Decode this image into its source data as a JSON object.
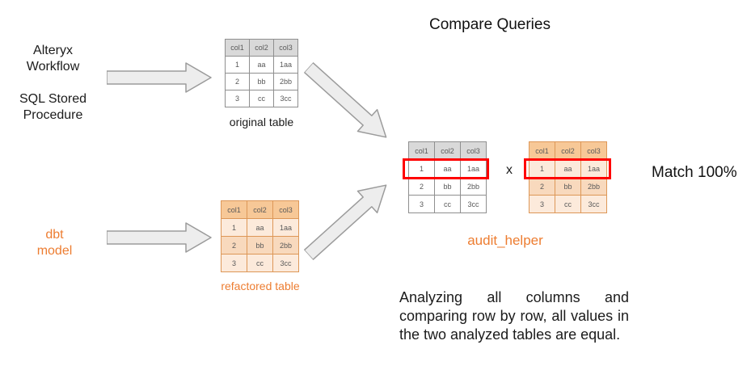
{
  "title": "Compare Queries",
  "colors": {
    "accent_orange": "#ED7D31",
    "highlight_red": "#FF0000",
    "table_gray_header": "#D9D9D9",
    "table_orange_header": "#F7C897",
    "table_orange_row": "#FCEADB",
    "arrow_fill": "#EDEDED"
  },
  "sources": {
    "alteryx": {
      "line1": "Alteryx",
      "line2": "Workflow"
    },
    "sql": {
      "line1": "SQL Stored",
      "line2": "Procedure"
    },
    "dbt": {
      "line1": "dbt",
      "line2": "model"
    }
  },
  "tables": {
    "original": {
      "caption": "original table",
      "headers": [
        "col1",
        "col2",
        "col3"
      ],
      "rows": [
        [
          "1",
          "aa",
          "1aa"
        ],
        [
          "2",
          "bb",
          "2bb"
        ],
        [
          "3",
          "cc",
          "3cc"
        ]
      ]
    },
    "refactored": {
      "caption": "refactored table",
      "headers": [
        "col1",
        "col2",
        "col3"
      ],
      "rows": [
        [
          "1",
          "aa",
          "1aa"
        ],
        [
          "2",
          "bb",
          "2bb"
        ],
        [
          "3",
          "cc",
          "3cc"
        ]
      ]
    },
    "compare_left": {
      "headers": [
        "col1",
        "col2",
        "col3"
      ],
      "rows": [
        [
          "1",
          "aa",
          "1aa"
        ],
        [
          "2",
          "bb",
          "2bb"
        ],
        [
          "3",
          "cc",
          "3cc"
        ]
      ]
    },
    "compare_right": {
      "headers": [
        "col1",
        "col2",
        "col3"
      ],
      "rows": [
        [
          "1",
          "aa",
          "1aa"
        ],
        [
          "2",
          "bb",
          "2bb"
        ],
        [
          "3",
          "cc",
          "3cc"
        ]
      ]
    }
  },
  "compare": {
    "operator": "x",
    "tool_label": "audit_helper",
    "result": "Match 100%"
  },
  "note": "Analyzing all columns and comparing row by row, all values in the two analyzed tables are equal."
}
